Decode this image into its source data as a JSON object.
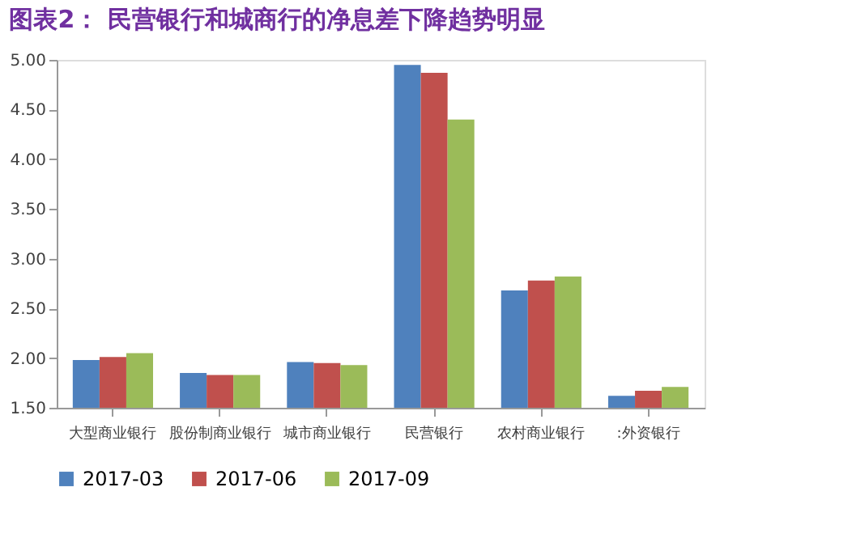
{
  "chart_data": {
    "type": "bar",
    "title": "图表2：  民营银行和城商行的净息差下降趋势明显",
    "categories": [
      "大型商业银行",
      "股份制商业银行",
      "城市商业银行",
      "民营银行",
      "农村商业银行",
      ":外资银行"
    ],
    "series": [
      {
        "name": "2017-03",
        "color": "#4f81bd",
        "values": [
          1.98,
          1.85,
          1.96,
          4.95,
          2.68,
          1.62
        ]
      },
      {
        "name": "2017-06",
        "color": "#c0504d",
        "values": [
          2.01,
          1.83,
          1.95,
          4.87,
          2.78,
          1.67
        ]
      },
      {
        "name": "2017-09",
        "color": "#9bbb59",
        "values": [
          2.05,
          1.83,
          1.93,
          4.4,
          2.82,
          1.71
        ]
      }
    ],
    "ylim": [
      1.5,
      5.0
    ],
    "yticks": [
      {
        "value": 1.5,
        "label": "1.50"
      },
      {
        "value": 2,
        "label": "2.00"
      },
      {
        "value": 2.5,
        "label": "2.50"
      },
      {
        "value": 3,
        "label": "3.00"
      },
      {
        "value": 3.5,
        "label": "3.50"
      },
      {
        "value": 4,
        "label": "4.00"
      },
      {
        "value": 4.5,
        "label": "4.50"
      },
      {
        "value": 5,
        "label": "5.00"
      }
    ],
    "grid": false,
    "legend": "bottom"
  }
}
